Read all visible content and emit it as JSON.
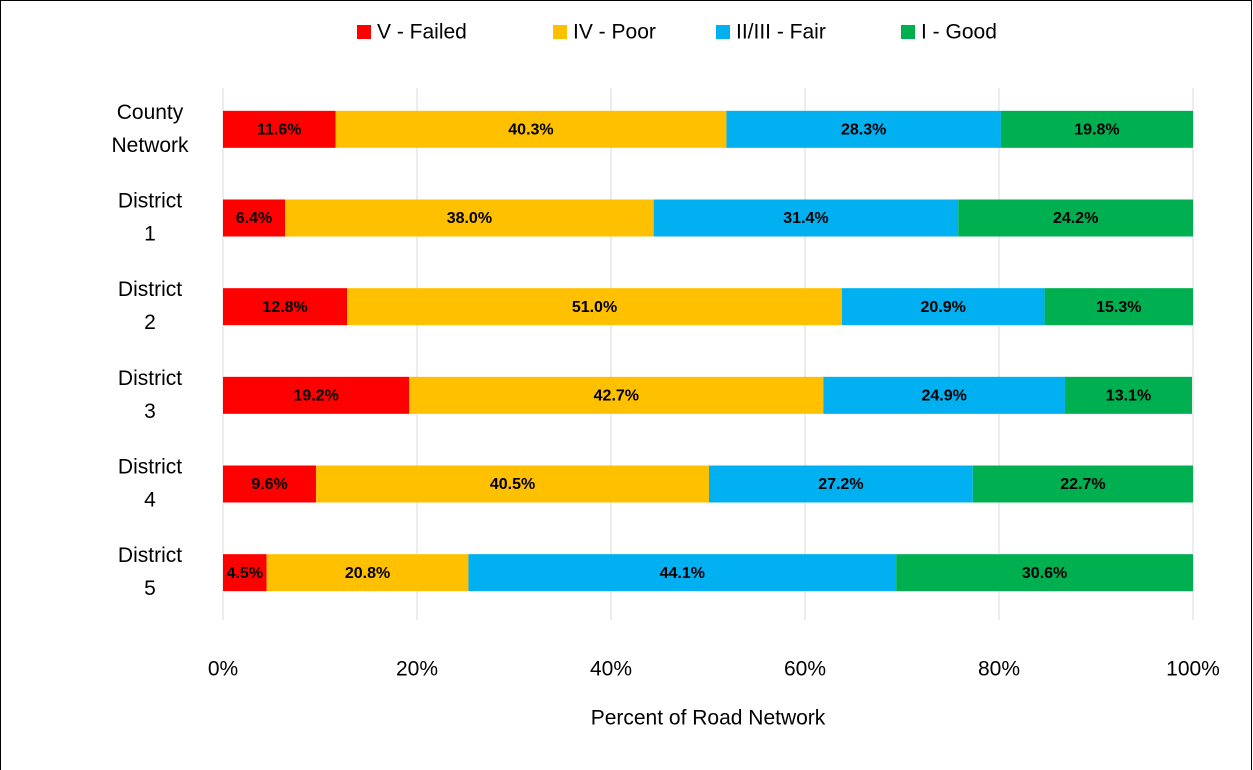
{
  "chart_data": {
    "type": "stacked_bar_horizontal",
    "categories": [
      "County Network",
      "District 1",
      "District 2",
      "District 3",
      "District 4",
      "District 5"
    ],
    "series": [
      {
        "name": "V - Failed",
        "color": "#ff0000",
        "label_color": "#ffffff",
        "values": [
          11.6,
          6.4,
          12.8,
          19.2,
          9.6,
          4.5
        ],
        "value_labels": [
          "11.6%",
          "6.4%",
          "12.8%",
          "19.2%",
          "9.6%",
          "4.5%"
        ]
      },
      {
        "name": "IV - Poor",
        "color": "#ffc000",
        "label_color": "#404040",
        "values": [
          40.3,
          38.0,
          51.0,
          42.7,
          40.5,
          20.8
        ],
        "value_labels": [
          "40.3%",
          "38.0%",
          "51.0%",
          "42.7%",
          "40.5%",
          "20.8%"
        ]
      },
      {
        "name": "II/III - Fair",
        "color": "#00b0f0",
        "label_color": "#ffffff",
        "values": [
          28.3,
          31.4,
          20.9,
          24.9,
          27.2,
          44.1
        ],
        "value_labels": [
          "28.3%",
          "31.4%",
          "20.9%",
          "24.9%",
          "27.2%",
          "44.1%"
        ]
      },
      {
        "name": "I - Good",
        "color": "#00b050",
        "label_color": "#ffffff",
        "values": [
          19.8,
          24.2,
          15.3,
          13.1,
          22.7,
          30.6
        ],
        "value_labels": [
          "19.8%",
          "24.2%",
          "15.3%",
          "13.1%",
          "22.7%",
          "30.6%"
        ]
      }
    ],
    "x_label": "Percent of Road Network",
    "xlim": [
      0,
      100
    ],
    "xticks": [
      {
        "value": 0,
        "label": "0%"
      },
      {
        "value": 20,
        "label": "20%"
      },
      {
        "value": 40,
        "label": "40%"
      },
      {
        "value": 60,
        "label": "60%"
      },
      {
        "value": 80,
        "label": "80%"
      },
      {
        "value": 100,
        "label": "100%"
      }
    ],
    "grid": true,
    "legend": "top"
  }
}
